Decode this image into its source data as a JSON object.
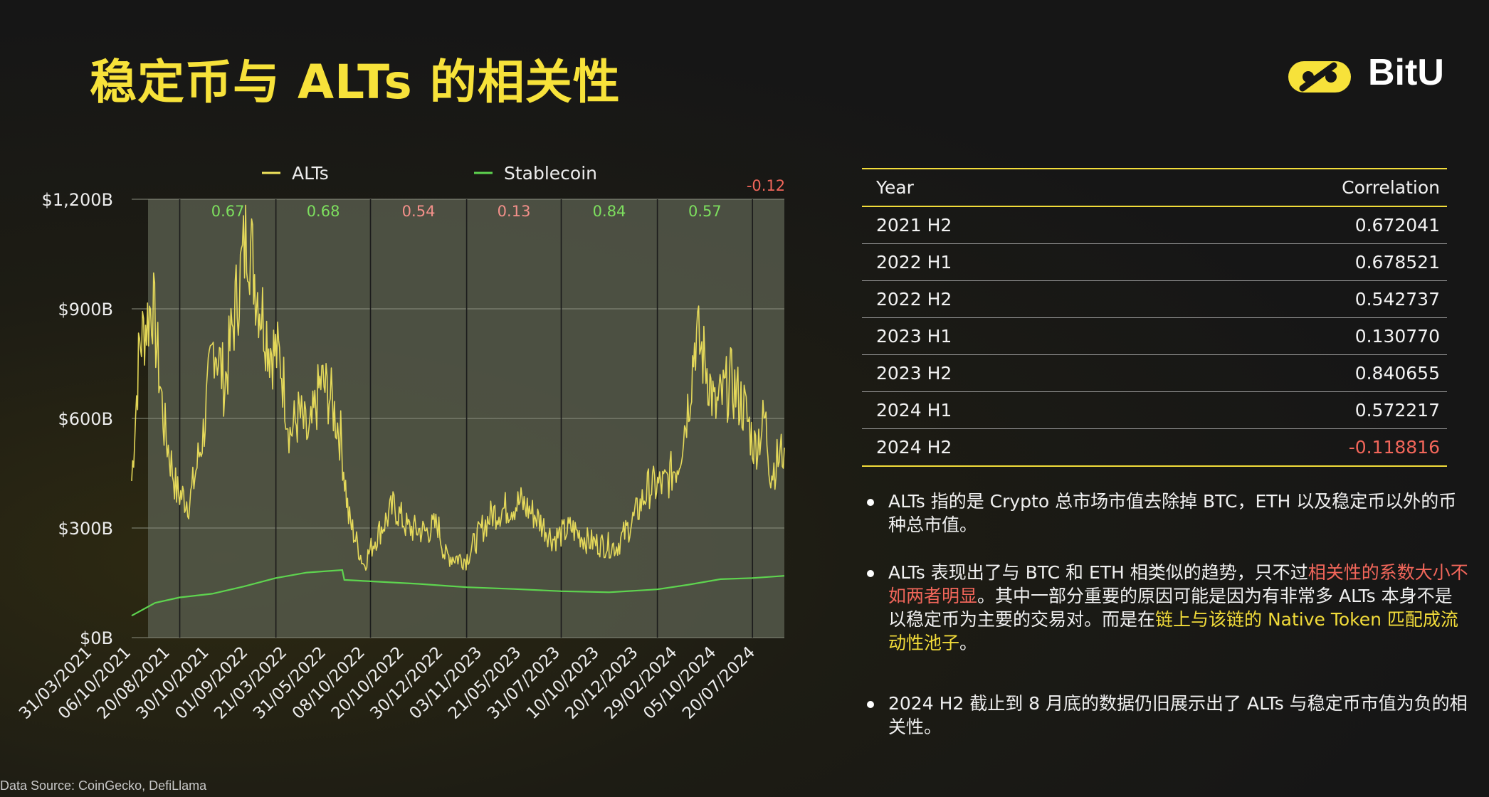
{
  "title": "稳定币与 ALTs 的相关性",
  "logo_text": "BitU",
  "chart_data": {
    "type": "line",
    "title": "",
    "xlabel": "",
    "ylabel": "",
    "ylim": [
      0,
      1200
    ],
    "y_ticks": [
      "$0B",
      "$300B",
      "$600B",
      "$900B",
      "$1,200B"
    ],
    "y_tick_values": [
      0,
      300,
      600,
      900,
      1200
    ],
    "x_start": "2021-03-31",
    "x_end": "2024-08-31",
    "x_tick_labels": [
      "31/03/2021",
      "06/10/2021",
      "20/08/2021",
      "30/10/2021",
      "01/09/2022",
      "21/03/2022",
      "31/05/2022",
      "08/10/2022",
      "20/10/2022",
      "30/12/2022",
      "03/11/2023",
      "21/05/2023",
      "31/07/2023",
      "10/10/2023",
      "20/12/2023",
      "29/02/2024",
      "05/10/2024",
      "20/07/2024"
    ],
    "legend_position": "top",
    "period_bounds": [
      "2021-07-01",
      "2022-01-01",
      "2022-07-01",
      "2023-01-01",
      "2023-07-01",
      "2024-01-01",
      "2024-07-01"
    ],
    "period_correlations": [
      "0.67",
      "0.68",
      "0.54",
      "0.13",
      "0.84",
      "0.57",
      "-0.12"
    ],
    "series": [
      {
        "name": "ALTs",
        "color": "#f2e55c",
        "points": [
          [
            "2021-03-31",
            430
          ],
          [
            "2021-04-15",
            800
          ],
          [
            "2021-05-10",
            920
          ],
          [
            "2021-06-01",
            580
          ],
          [
            "2021-06-25",
            400
          ],
          [
            "2021-07-20",
            370
          ],
          [
            "2021-08-15",
            560
          ],
          [
            "2021-09-05",
            820
          ],
          [
            "2021-09-25",
            690
          ],
          [
            "2021-10-15",
            900
          ],
          [
            "2021-11-08",
            1120
          ],
          [
            "2021-11-25",
            960
          ],
          [
            "2021-12-20",
            800
          ],
          [
            "2022-01-10",
            760
          ],
          [
            "2022-01-28",
            560
          ],
          [
            "2022-02-15",
            610
          ],
          [
            "2022-03-05",
            540
          ],
          [
            "2022-03-28",
            700
          ],
          [
            "2022-04-15",
            660
          ],
          [
            "2022-05-05",
            550
          ],
          [
            "2022-05-20",
            330
          ],
          [
            "2022-06-18",
            200
          ],
          [
            "2022-07-10",
            270
          ],
          [
            "2022-08-15",
            360
          ],
          [
            "2022-09-10",
            300
          ],
          [
            "2022-10-15",
            290
          ],
          [
            "2022-11-07",
            310
          ],
          [
            "2022-11-20",
            225
          ],
          [
            "2022-12-31",
            215
          ],
          [
            "2023-01-31",
            300
          ],
          [
            "2023-02-20",
            340
          ],
          [
            "2023-04-15",
            370
          ],
          [
            "2023-05-15",
            330
          ],
          [
            "2023-06-15",
            270
          ],
          [
            "2023-07-20",
            300
          ],
          [
            "2023-08-20",
            265
          ],
          [
            "2023-09-15",
            255
          ],
          [
            "2023-10-15",
            250
          ],
          [
            "2023-11-15",
            320
          ],
          [
            "2023-12-15",
            410
          ],
          [
            "2024-01-15",
            420
          ],
          [
            "2024-02-10",
            480
          ],
          [
            "2024-03-01",
            650
          ],
          [
            "2024-03-14",
            830
          ],
          [
            "2024-04-05",
            740
          ],
          [
            "2024-04-20",
            620
          ],
          [
            "2024-05-20",
            700
          ],
          [
            "2024-06-15",
            630
          ],
          [
            "2024-07-05",
            520
          ],
          [
            "2024-07-25",
            600
          ],
          [
            "2024-08-05",
            450
          ],
          [
            "2024-08-31",
            520
          ]
        ]
      },
      {
        "name": "Stablecoin",
        "color": "#5ed44f",
        "points": [
          [
            "2021-03-31",
            60
          ],
          [
            "2021-05-15",
            95
          ],
          [
            "2021-07-01",
            110
          ],
          [
            "2021-09-01",
            120
          ],
          [
            "2021-11-01",
            140
          ],
          [
            "2022-01-01",
            163
          ],
          [
            "2022-03-01",
            178
          ],
          [
            "2022-05-08",
            185
          ],
          [
            "2022-05-12",
            158
          ],
          [
            "2022-07-01",
            154
          ],
          [
            "2022-10-01",
            147
          ],
          [
            "2023-01-01",
            138
          ],
          [
            "2023-04-01",
            133
          ],
          [
            "2023-07-01",
            127
          ],
          [
            "2023-10-01",
            124
          ],
          [
            "2024-01-01",
            132
          ],
          [
            "2024-03-01",
            145
          ],
          [
            "2024-05-01",
            160
          ],
          [
            "2024-07-01",
            163
          ],
          [
            "2024-08-31",
            169
          ]
        ]
      }
    ]
  },
  "table": {
    "headers": [
      "Year",
      "Correlation"
    ],
    "rows": [
      {
        "year": "2021 H2",
        "value": "0.672041"
      },
      {
        "year": "2022 H1",
        "value": "0.678521"
      },
      {
        "year": "2022 H2",
        "value": "0.542737"
      },
      {
        "year": "2023 H1",
        "value": "0.130770"
      },
      {
        "year": "2023 H2",
        "value": "0.840655"
      },
      {
        "year": "2024 H1",
        "value": "0.572217"
      },
      {
        "year": "2024 H2",
        "value": "-0.118816"
      }
    ]
  },
  "notes": {
    "note1": "ALTs 指的是 Crypto 总市场市值去除掉 BTC，ETH 以及稳定币以外的币种总市值。",
    "note2_a": "ALTs 表现出了与 BTC 和 ETH 相类似的趋势，只不过",
    "note2_b": "相关性的系数大小不如两者明显",
    "note2_c": "。其中一部分重要的原因可能是因为有非常多 ALTs 本身不是以稳定币为主要的交易对。而是在",
    "note2_d": "链上与该链的 Native Token 匹配成流动性池子",
    "note2_e": "。",
    "note3": "2024 H2 截止到 8 月底的数据仍旧展示出了 ALTs 与稳定币市值为负的相关性。"
  },
  "source": "Data Source: CoinGecko, DefiLlama",
  "colors": {
    "accent_yellow": "#f7e23a",
    "negative_red": "#f1665a",
    "positive_green": "#5ed44f"
  }
}
